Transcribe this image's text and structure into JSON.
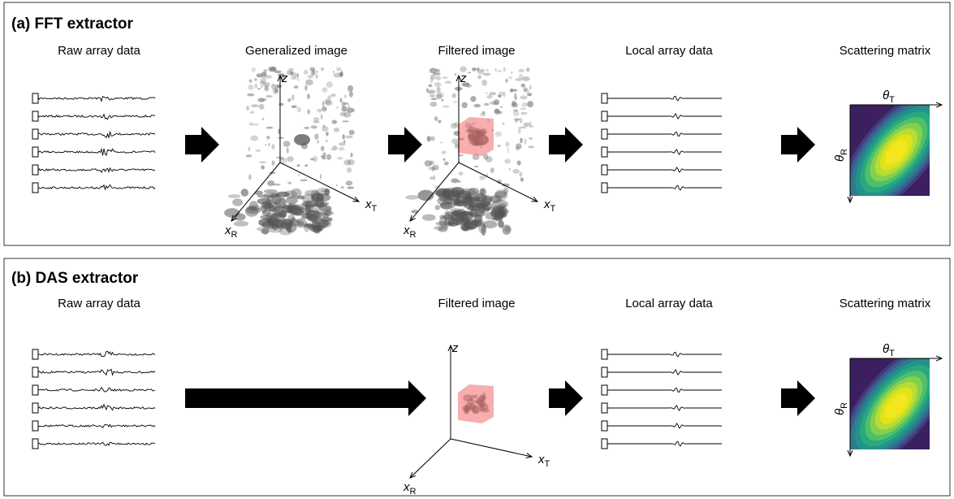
{
  "panels": [
    {
      "title": "(a) FFT extractor",
      "stages": [
        "Raw array data",
        "Generalized image",
        "Filtered image",
        "Local array data",
        "Scattering matrix"
      ]
    },
    {
      "title": "(b) DAS extractor",
      "stages": [
        "Raw array data",
        "Filtered image",
        "Local array data",
        "Scattering matrix"
      ]
    }
  ],
  "axis_labels": {
    "z": "z",
    "x_t": {
      "symbol": "x",
      "subscript": "T"
    },
    "x_r": {
      "symbol": "x",
      "subscript": "R"
    },
    "theta_t": {
      "symbol": "θ",
      "subscript": "T"
    },
    "theta_r": {
      "symbol": "θ",
      "subscript": "R"
    }
  }
}
